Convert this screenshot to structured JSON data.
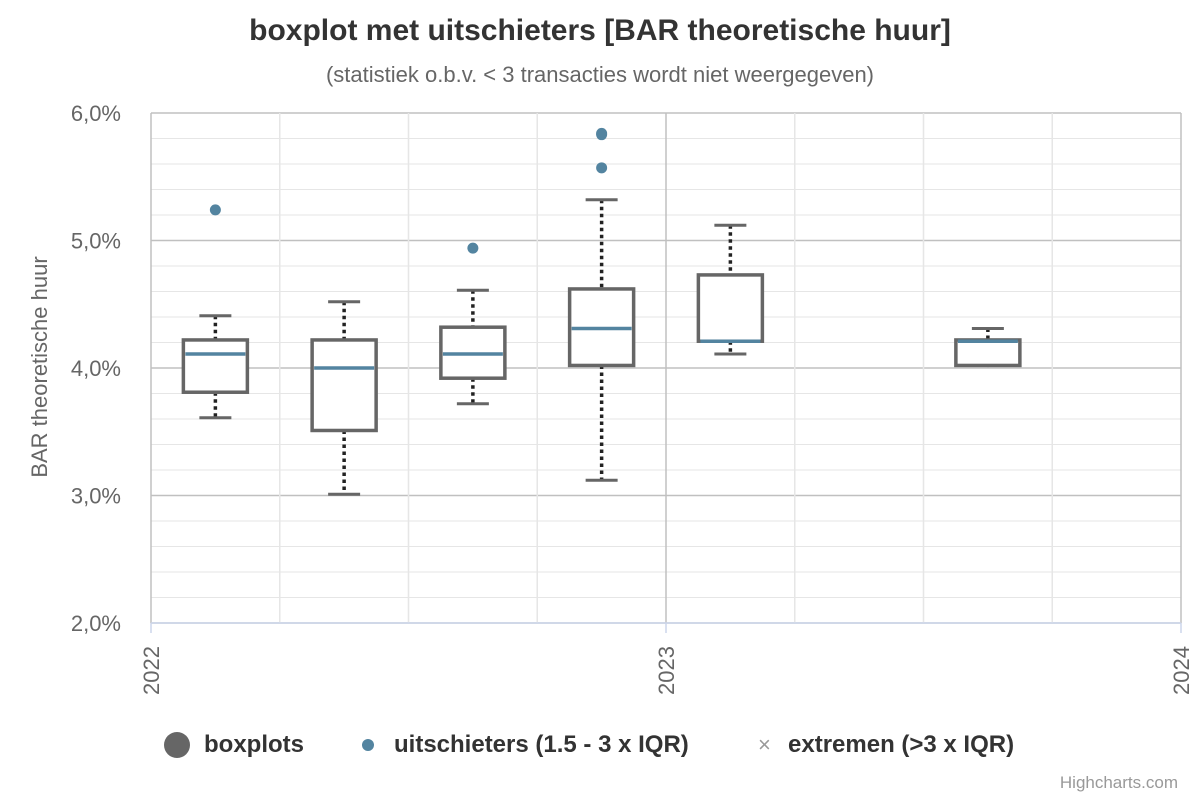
{
  "title": "boxplot met uitschieters [BAR theoretische huur]",
  "subtitle": "(statistiek o.b.v. < 3 transacties wordt niet weergegeven)",
  "credits": "Highcharts.com",
  "legend": {
    "boxplots": "boxplots",
    "outliers": "uitschieters (1.5 - 3 x IQR)",
    "extremes": "extremen (>3 x IQR)"
  },
  "colors": {
    "box": "#666666",
    "median": "#5384a0",
    "outlier": "#5384a0",
    "extreme": "#999999",
    "grid": "#e6e6e6",
    "grid_major": "#c0c0c0"
  },
  "chart_data": {
    "type": "boxplot",
    "title": "boxplot met uitschieters [BAR theoretische huur]",
    "subtitle": "(statistiek o.b.v. < 3 transacties wordt niet weergegeven)",
    "ylabel": "BAR theoretische huur",
    "ylim": [
      2.0,
      6.0
    ],
    "yticks": [
      "2,0%",
      "3,0%",
      "4,0%",
      "5,0%",
      "6,0%"
    ],
    "xlim": [
      2022,
      2024
    ],
    "xticks": [
      "2022",
      "2023",
      "2024"
    ],
    "grid": true,
    "legend_position": "bottom-center",
    "boxes": [
      {
        "x": 2022.125,
        "low": 3.61,
        "q1": 3.81,
        "median": 4.11,
        "q3": 4.22,
        "high": 4.41
      },
      {
        "x": 2022.375,
        "low": 3.01,
        "q1": 3.51,
        "median": 4.0,
        "q3": 4.22,
        "high": 4.52
      },
      {
        "x": 2022.625,
        "low": 3.72,
        "q1": 3.92,
        "median": 4.11,
        "q3": 4.32,
        "high": 4.61
      },
      {
        "x": 2022.875,
        "low": 3.12,
        "q1": 4.02,
        "median": 4.31,
        "q3": 4.62,
        "high": 5.32
      },
      {
        "x": 2023.125,
        "low": 4.11,
        "q1": 4.21,
        "median": 4.21,
        "q3": 4.73,
        "high": 5.12
      },
      {
        "x": 2023.625,
        "low": 4.02,
        "q1": 4.02,
        "median": 4.21,
        "q3": 4.22,
        "high": 4.31
      }
    ],
    "outliers": [
      {
        "x": 2022.125,
        "y": 5.24
      },
      {
        "x": 2022.625,
        "y": 4.94
      },
      {
        "x": 2022.875,
        "y": 5.84
      },
      {
        "x": 2022.875,
        "y": 5.83
      },
      {
        "x": 2022.875,
        "y": 5.57
      }
    ],
    "extremes": []
  }
}
